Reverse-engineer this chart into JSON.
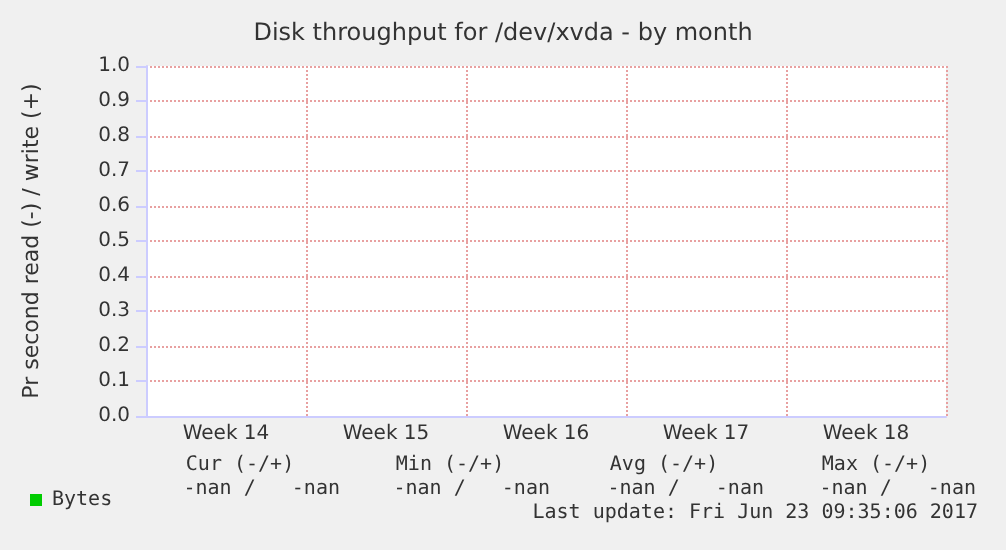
{
  "chart_data": {
    "type": "line",
    "title": "Disk throughput for /dev/xvda - by month",
    "ylabel": "Pr second read (-) / write (+)",
    "categories": [
      "Week 14",
      "Week 15",
      "Week 16",
      "Week 17",
      "Week 18"
    ],
    "series": [
      {
        "name": "Bytes",
        "color": "#00cc00",
        "values": [
          null,
          null,
          null,
          null,
          null
        ]
      }
    ],
    "ylim": [
      0,
      1
    ],
    "yticks": [
      {
        "value": 0,
        "label": "0.0"
      },
      0.1,
      0.2,
      0.3,
      0.4,
      0.5,
      0.6,
      0.7,
      0.8,
      0.9,
      {
        "value": 1,
        "label": "1.0"
      }
    ],
    "grid": true,
    "legend": "bottom left",
    "annotations": [
      "Cur (-/+)",
      "Min (-/+)",
      "Avg (-/+)",
      "Max (-/+)",
      "-nan /   -nan",
      "-nan /   -nan",
      "-nan /   -nan",
      "-nan /   -nan",
      "Last update: Fri Jun 23 09:35:06 2017"
    ]
  }
}
